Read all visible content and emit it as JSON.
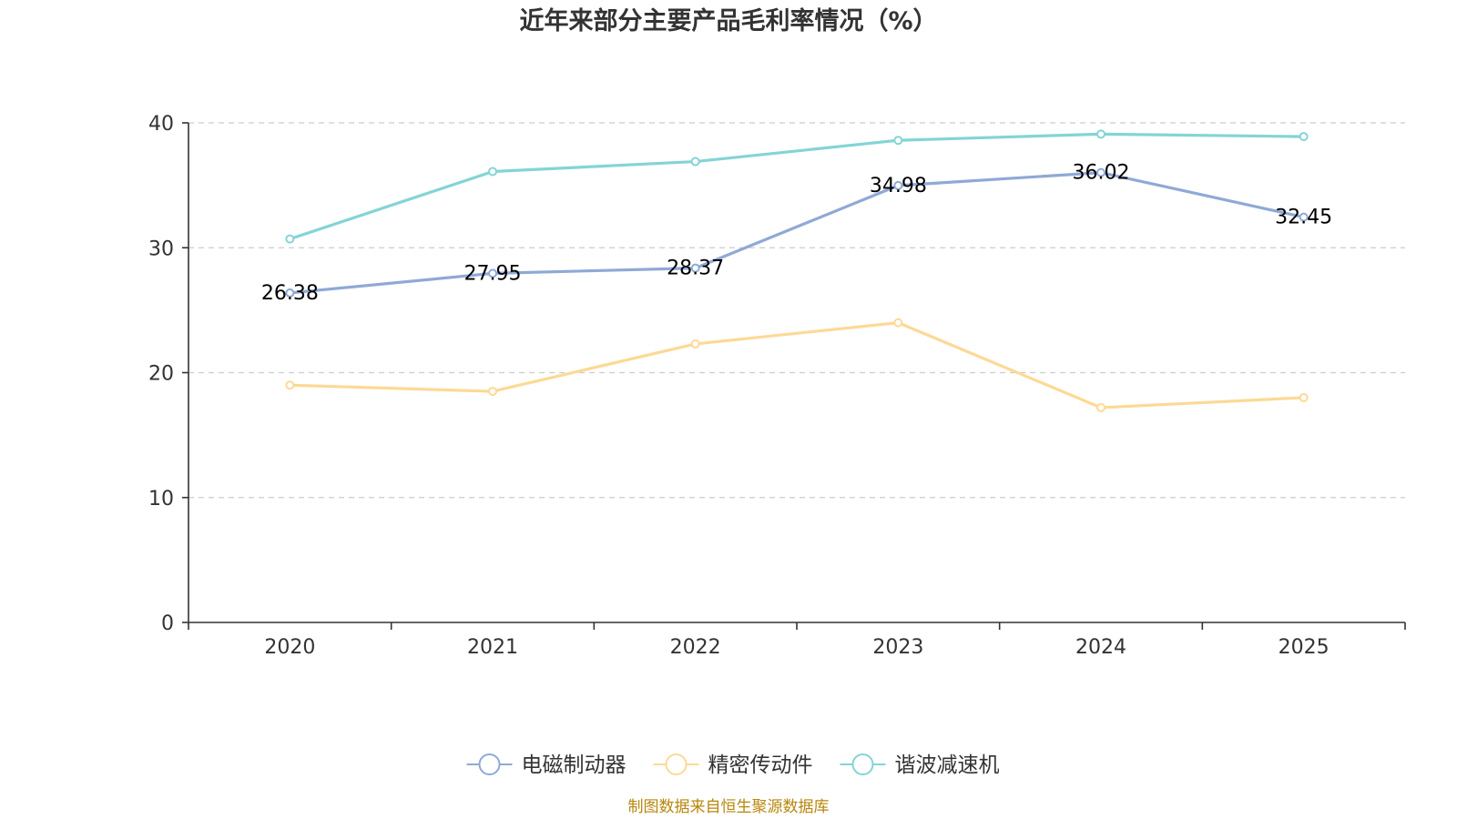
{
  "colors": {
    "series": [
      "#8fa9d6",
      "#fdd995",
      "#84d4d6"
    ],
    "source": "#b8860b"
  },
  "footer": {
    "source": "制图数据来自恒生聚源数据库"
  },
  "chart_data": {
    "type": "line",
    "title": "近年来部分主要产品毛利率情况（%）",
    "xlabel": "",
    "ylabel": "",
    "categories": [
      "2020",
      "2021",
      "2022",
      "2023",
      "2024",
      "2025"
    ],
    "ylim": [
      0,
      40
    ],
    "yticks": [
      0,
      10,
      20,
      30,
      40
    ],
    "grid": true,
    "legend_position": "bottom-center",
    "series": [
      {
        "name": "电磁制动器",
        "values": [
          26.38,
          27.95,
          28.37,
          34.98,
          36.02,
          32.45
        ],
        "labels": [
          "26.38",
          "27.95",
          "28.37",
          "34.98",
          "36.02",
          "32.45"
        ],
        "show_labels": true
      },
      {
        "name": "精密传动件",
        "values": [
          19.0,
          18.5,
          22.3,
          24.0,
          17.2,
          18.0
        ],
        "show_labels": false
      },
      {
        "name": "谐波减速机",
        "values": [
          30.7,
          36.1,
          36.9,
          38.6,
          39.1,
          38.9
        ],
        "show_labels": false
      }
    ]
  }
}
